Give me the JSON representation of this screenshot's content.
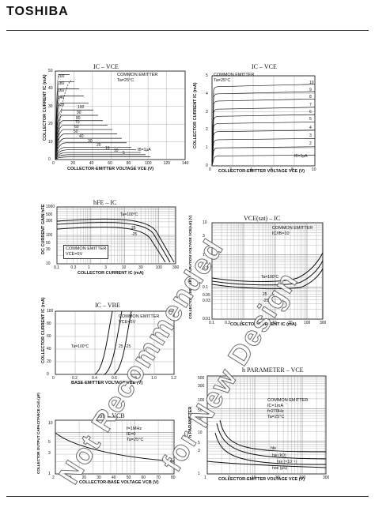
{
  "header": {
    "brand": "TOSHIBA"
  },
  "watermark": {
    "line1": "Not Recommended",
    "line2": "for New Design"
  },
  "charts": [
    {
      "id": "ic-vce-1",
      "title": "IC – VCE",
      "xlabel": "COLLECTOR-EMITTER VOLTAGE  VCE  (V)",
      "ylabel": "COLLECTOR CURRENT  IC  (mA)",
      "note": [
        "COMMON EMITTER",
        "Ta=25°C"
      ],
      "x_ticks": [
        "0",
        "20",
        "40",
        "60",
        "80",
        "100",
        "120",
        "140"
      ],
      "y_ticks": [
        "0",
        "10",
        "20",
        "30",
        "40",
        "50"
      ],
      "curve_labels": [
        "200",
        "180",
        "160",
        "140",
        "120",
        "100",
        "90",
        "80",
        "70",
        "60",
        "50",
        "40",
        "30",
        "20",
        "15",
        "10",
        "5",
        "IB=1μA"
      ]
    },
    {
      "id": "ic-vce-2",
      "title": "IC – VCE",
      "xlabel": "COLLECTOR-EMITTER VOLTAGE  VCE  (V)",
      "ylabel": "COLLECTOR CURRENT  IC  (mA)",
      "note": [
        "COMMON EMITTER",
        "Ta=25°C"
      ],
      "x_ticks": [
        "0",
        "2",
        "4",
        "6",
        "8",
        "10"
      ],
      "y_ticks": [
        "0",
        "1",
        "2",
        "3",
        "4",
        "5"
      ],
      "curve_labels": [
        "10",
        "9",
        "8",
        "7",
        "6",
        "5",
        "4",
        "3",
        "2",
        "IB=1μA"
      ]
    },
    {
      "id": "hfe-ic",
      "title": "hFE – IC",
      "xlabel": "COLLECTOR CURRENT  IC  (mA)",
      "ylabel": "DC CURRENT GAIN  hFE",
      "note": [
        "COMMON EMITTER",
        "VCE=5V"
      ],
      "x_ticks": [
        "0.1",
        "0.3",
        "1",
        "3",
        "10",
        "30",
        "100",
        "300"
      ],
      "y_ticks": [
        "1000",
        "500",
        "300",
        "100",
        "50",
        "30",
        "10"
      ],
      "curve_labels": [
        "Ta=100°C",
        "25",
        "-25"
      ]
    },
    {
      "id": "vcesat-ic",
      "title": "VCE(sat) – IC",
      "xlabel": "COLLECTOR CURRENT  IC  (mA)",
      "ylabel": "COLLECTOR-EMITTER SATURATION VOLTAGE  VCE(sat)  (V)",
      "note": [
        "COMMON EMITTER",
        "IC/IB=10"
      ],
      "x_ticks": [
        "0.1",
        "0.3",
        "1",
        "3",
        "10",
        "30",
        "100",
        "300"
      ],
      "y_ticks": [
        "10",
        "3",
        "1",
        "0.5",
        "0.3",
        "0.1",
        "0.05",
        "0.03",
        "0.01"
      ],
      "curve_labels": [
        "Ta=100°C",
        "25",
        "-25"
      ]
    },
    {
      "id": "ic-vbe",
      "title": "IC – VBE",
      "xlabel": "BASE-EMITTER VOLTAGE  VBE  (V)",
      "ylabel": "COLLECTOR CURRENT  IC  (mA)",
      "note": [
        "COMMON EMITTER",
        "VCE=5V"
      ],
      "x_ticks": [
        "0",
        "0.2",
        "0.4",
        "0.6",
        "0.8",
        "1.0",
        "1.2"
      ],
      "y_ticks": [
        "0",
        "20",
        "40",
        "60",
        "80",
        "100"
      ],
      "curve_labels": [
        "Ta=100°C",
        "25",
        "-25"
      ]
    },
    {
      "id": "hparam-vce",
      "title": "h PARAMETER – VCE",
      "xlabel": "COLLECTOR-EMITTER VOLTAGE  VCE  (V)",
      "ylabel": "h PARAMETER",
      "note": [
        "COMMON EMITTER",
        "IC=1mA",
        "f=270Hz",
        "Ta=25°C"
      ],
      "x_ticks": [
        "1",
        "3",
        "10",
        "30",
        "100",
        "300"
      ],
      "y_ticks": [
        "500",
        "300",
        "100",
        "50",
        "30",
        "10",
        "5",
        "3",
        "1"
      ],
      "curve_labels": [
        "hfe",
        "hie (kΩ)",
        "hre (×10⁻⁴)",
        "hoe (μS)"
      ]
    },
    {
      "id": "cob-vcb",
      "title": "Cob – VCB",
      "xlabel": "COLLECTOR-BASE VOLTAGE  VCB  (V)",
      "ylabel": "COLLECTOR OUTPUT CAPACITANCE  Cob  (pF)",
      "note": [
        "f=1MHz",
        "IE=0",
        "Ta=25°C"
      ],
      "x_ticks": [
        "2",
        "10",
        "20",
        "30",
        "40",
        "50",
        "60",
        "70",
        "80"
      ],
      "y_ticks": [
        "10",
        "5",
        "3",
        "1"
      ],
      "curve_labels": []
    }
  ]
}
